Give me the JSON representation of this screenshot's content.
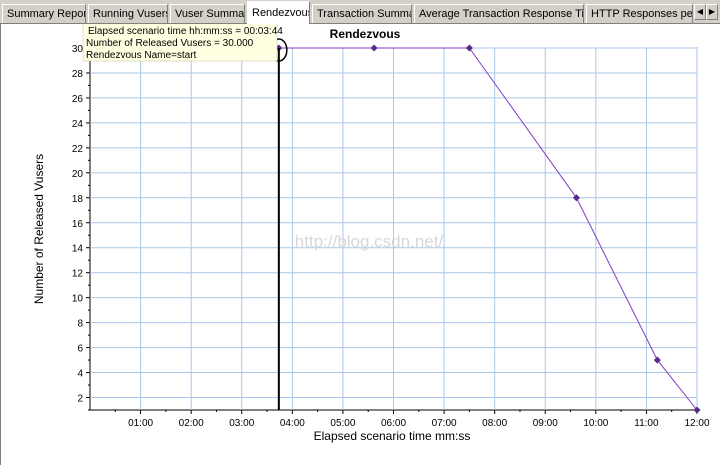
{
  "tabs": [
    {
      "label": "Summary Report",
      "active": false
    },
    {
      "label": "Running Vusers",
      "active": false
    },
    {
      "label": "Vuser Summary",
      "active": false
    },
    {
      "label": "Rendezvous",
      "active": true
    },
    {
      "label": "Transaction Summary",
      "active": false
    },
    {
      "label": "Average Transaction Response Time",
      "active": false
    },
    {
      "label": "HTTP Responses per Second",
      "active": false
    }
  ],
  "scroll_arrows": {
    "left": "◀",
    "right": "▶"
  },
  "tooltip": {
    "line1": "Elapsed scenario time hh:mm:ss = 00:03:44",
    "line2": "Number of Released Vusers = 30.000",
    "line3": "Rendezvous Name=start"
  },
  "watermark": "http://blog.csdn.net/",
  "colors": {
    "series": "#7f3fbf",
    "grid": "#a9c6e8",
    "tooltip_bg": "#ffffe1",
    "marker_line": "#000000"
  },
  "chart_data": {
    "type": "line",
    "title": "Rendezvous",
    "xlabel": "Elapsed scenario time mm:ss",
    "ylabel": "Number of Released Vusers",
    "xlim": [
      "00:00",
      "12:00"
    ],
    "ylim": [
      1,
      30
    ],
    "x_ticks": [
      "01:00",
      "02:00",
      "03:00",
      "04:00",
      "05:00",
      "06:00",
      "07:00",
      "08:00",
      "09:00",
      "10:00",
      "11:00",
      "12:00"
    ],
    "y_ticks": [
      2,
      4,
      6,
      8,
      10,
      12,
      14,
      16,
      18,
      20,
      22,
      24,
      26,
      28,
      30
    ],
    "grid": true,
    "series": [
      {
        "name": "start",
        "points": [
          {
            "x": "03:44",
            "y": 30
          },
          {
            "x": "05:37",
            "y": 30
          },
          {
            "x": "07:30",
            "y": 30
          },
          {
            "x": "09:37",
            "y": 18
          },
          {
            "x": "11:13",
            "y": 5
          },
          {
            "x": "12:00",
            "y": 1
          }
        ]
      }
    ],
    "selected_point": {
      "x": "03:44",
      "y": 30
    }
  }
}
